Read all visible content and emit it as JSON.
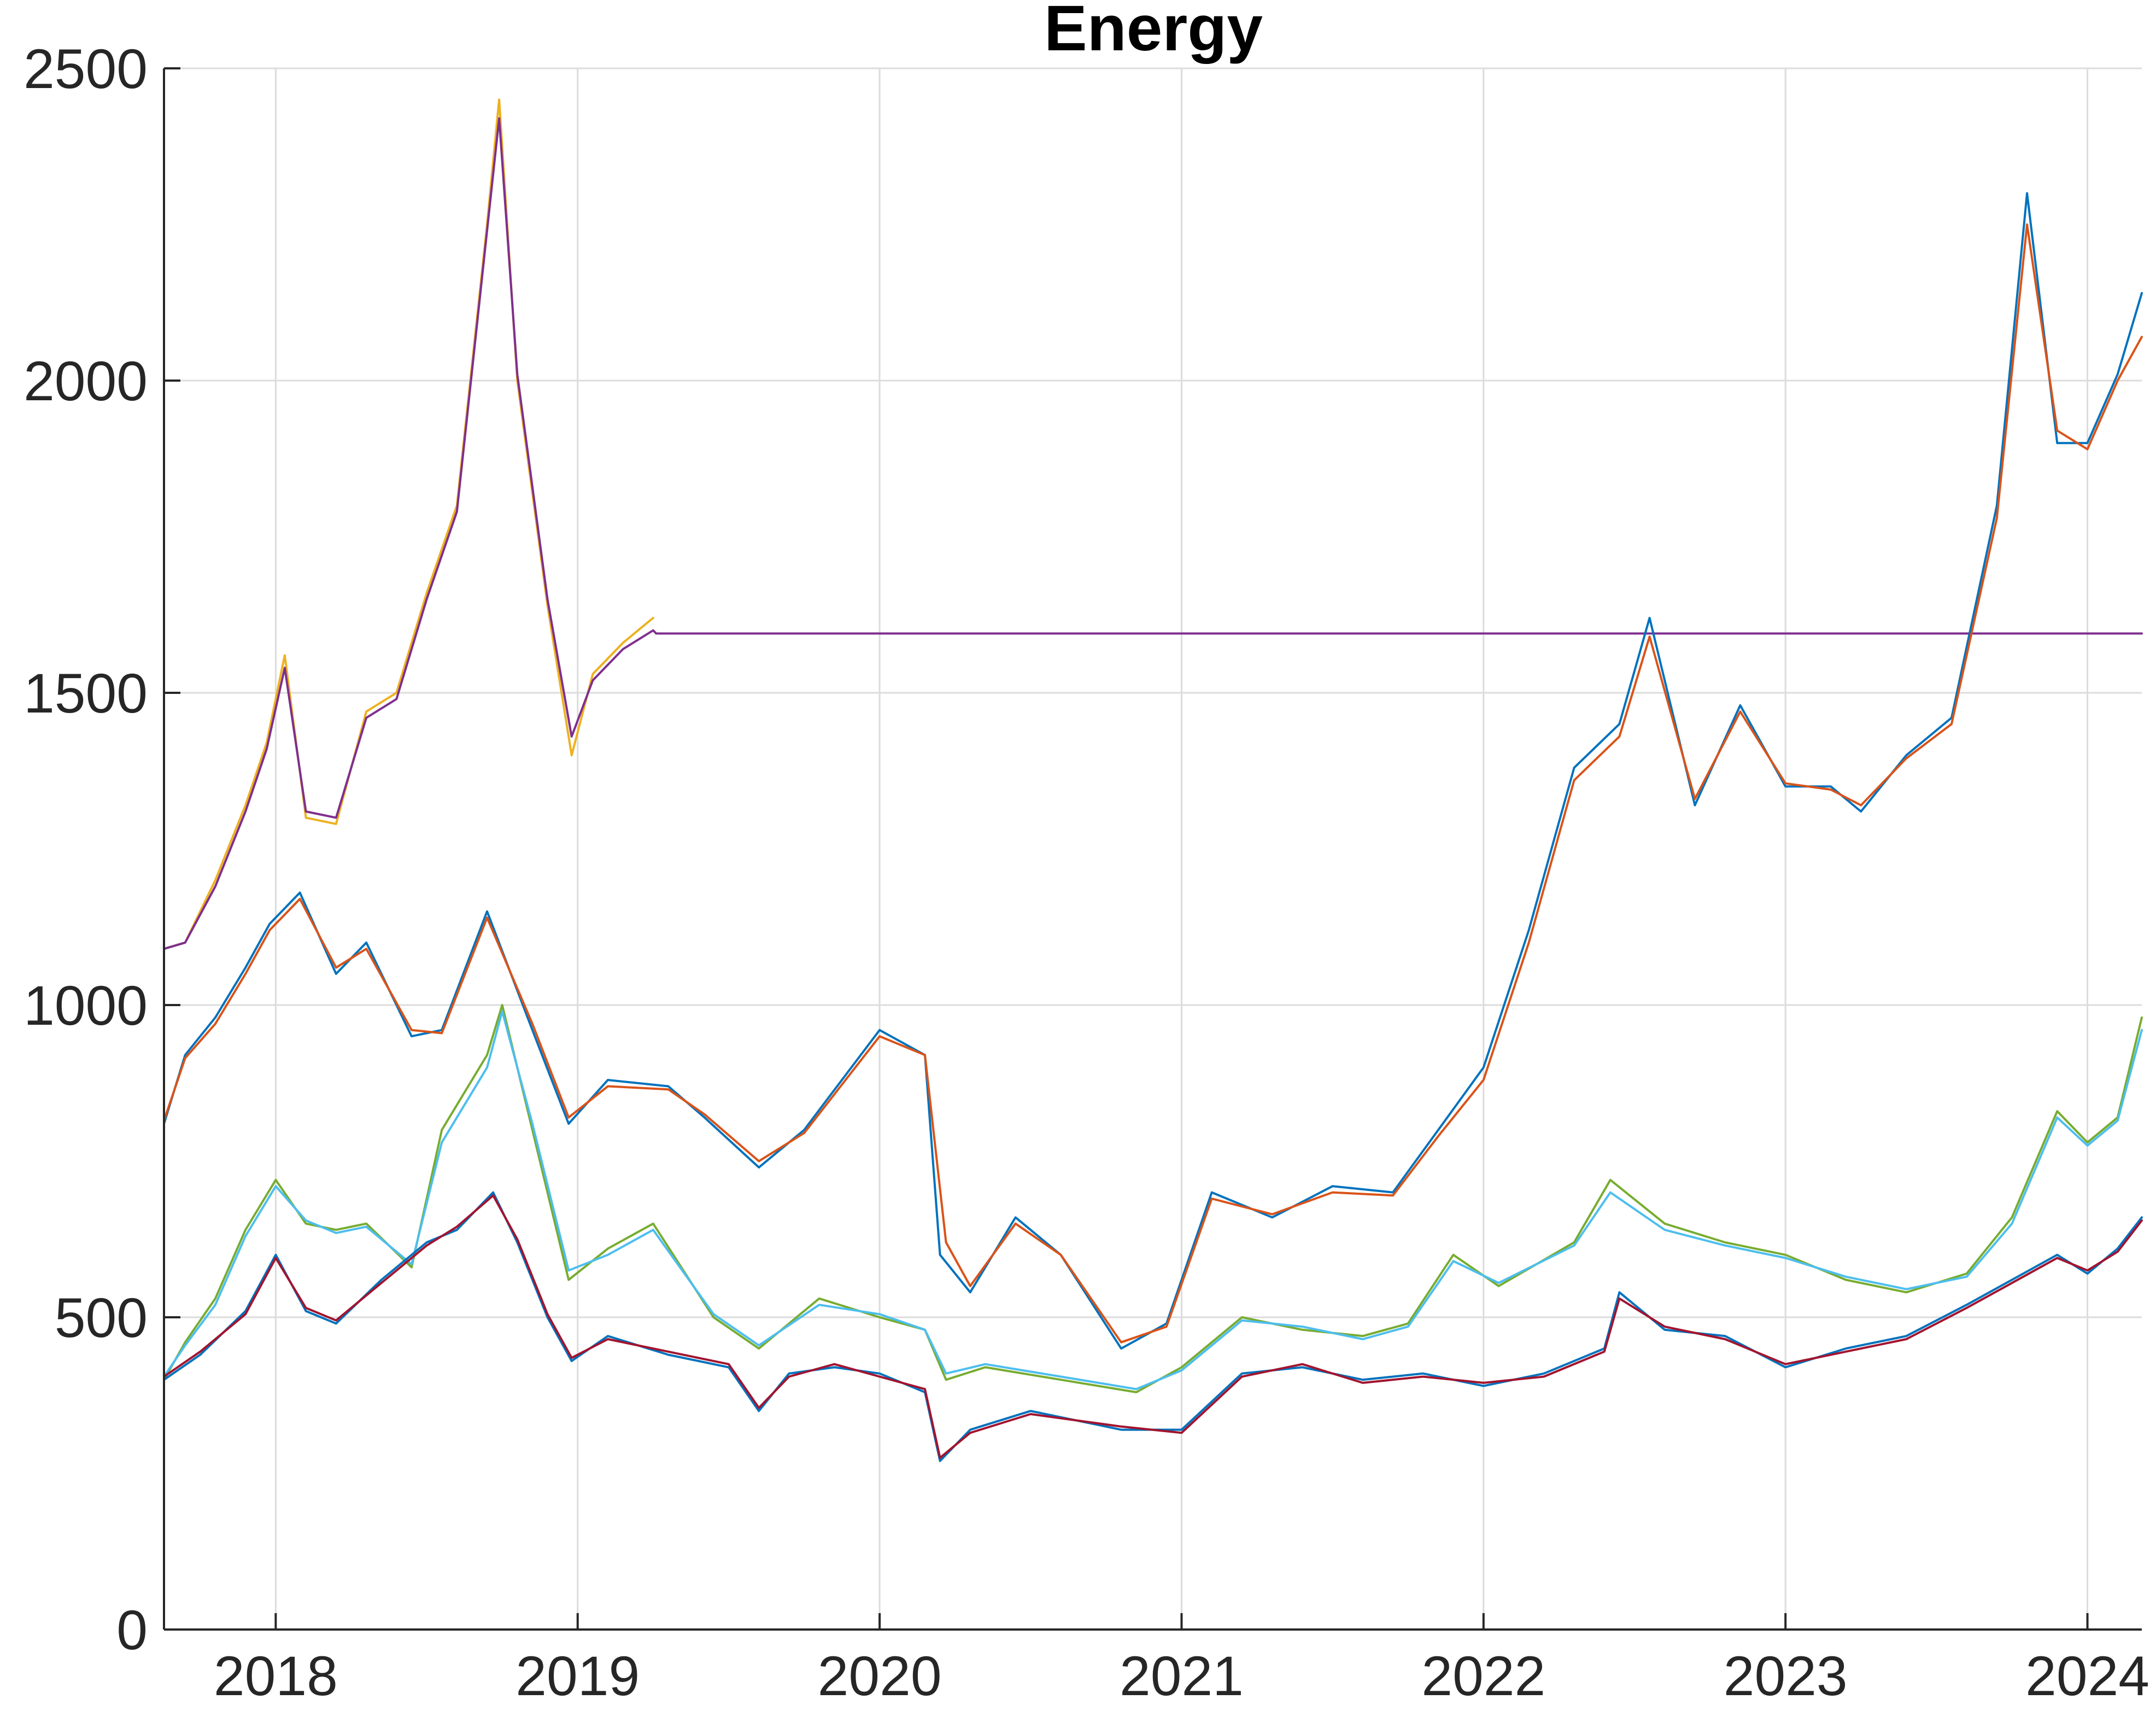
{
  "chart_data": {
    "type": "line",
    "title": "Energy",
    "xlabel": "",
    "ylabel": "",
    "grid": true,
    "xlim": [
      2017.63,
      2024.18
    ],
    "ylim": [
      0,
      2500
    ],
    "x_ticks": [
      "2018",
      "2019",
      "2020",
      "2021",
      "2022",
      "2023",
      "2024"
    ],
    "y_ticks": [
      "0",
      "500",
      "1000",
      "1500",
      "2000",
      "2500"
    ],
    "series": [
      {
        "color": "#EDB120",
        "x": [
          2017.63,
          2017.7,
          2017.8,
          2017.9,
          2017.97,
          2018.03,
          2018.1,
          2018.2,
          2018.3,
          2018.4,
          2018.5,
          2018.6,
          2018.7,
          2018.74,
          2018.8,
          2018.9,
          2018.98,
          2019.05,
          2019.15,
          2019.25
        ],
        "values": [
          1090,
          1100,
          1200,
          1320,
          1420,
          1560,
          1300,
          1290,
          1470,
          1500,
          1660,
          1800,
          2250,
          2450,
          2000,
          1640,
          1400,
          1530,
          1580,
          1620
        ]
      },
      {
        "color": "#7E2F8E",
        "x": [
          2017.63,
          2017.7,
          2017.8,
          2017.9,
          2017.97,
          2018.03,
          2018.1,
          2018.2,
          2018.3,
          2018.4,
          2018.5,
          2018.6,
          2018.7,
          2018.74,
          2018.8,
          2018.9,
          2018.98,
          2019.05,
          2019.15,
          2019.25,
          2019.26,
          2024.18
        ],
        "values": [
          1090,
          1100,
          1190,
          1310,
          1410,
          1540,
          1310,
          1300,
          1460,
          1490,
          1650,
          1790,
          2240,
          2420,
          2010,
          1650,
          1430,
          1520,
          1570,
          1600,
          1595,
          1595
        ]
      },
      {
        "color": "#0072BD",
        "x": [
          2017.63,
          2017.7,
          2017.8,
          2017.9,
          2017.98,
          2018.08,
          2018.2,
          2018.3,
          2018.45,
          2018.55,
          2018.7,
          2018.85,
          2018.97,
          2019.1,
          2019.3,
          2019.42,
          2019.6,
          2019.75,
          2020.0,
          2020.15,
          2020.2,
          2020.3,
          2020.45,
          2020.6,
          2020.8,
          2020.95,
          2021.1,
          2021.3,
          2021.5,
          2021.7,
          2021.85,
          2022.0,
          2022.15,
          2022.3,
          2022.45,
          2022.55,
          2022.7,
          2022.85,
          2023.0,
          2023.15,
          2023.25,
          2023.4,
          2023.55,
          2023.7,
          2023.8,
          2023.9,
          2024.0,
          2024.1,
          2024.18
        ],
        "values": [
          810,
          920,
          980,
          1060,
          1130,
          1180,
          1050,
          1100,
          950,
          960,
          1150,
          960,
          810,
          880,
          870,
          820,
          740,
          800,
          960,
          920,
          600,
          540,
          660,
          600,
          450,
          490,
          700,
          660,
          710,
          700,
          800,
          900,
          1120,
          1380,
          1450,
          1620,
          1320,
          1480,
          1350,
          1350,
          1310,
          1400,
          1460,
          1800,
          2300,
          1900,
          1900,
          2010,
          2140
        ]
      },
      {
        "color": "#D95319",
        "x": [
          2017.63,
          2017.7,
          2017.8,
          2017.9,
          2017.98,
          2018.08,
          2018.2,
          2018.3,
          2018.45,
          2018.55,
          2018.7,
          2018.85,
          2018.97,
          2019.1,
          2019.3,
          2019.42,
          2019.6,
          2019.75,
          2020.0,
          2020.15,
          2020.22,
          2020.3,
          2020.45,
          2020.6,
          2020.8,
          2020.95,
          2021.1,
          2021.3,
          2021.5,
          2021.7,
          2021.85,
          2022.0,
          2022.15,
          2022.3,
          2022.45,
          2022.55,
          2022.7,
          2022.85,
          2023.0,
          2023.15,
          2023.25,
          2023.4,
          2023.55,
          2023.7,
          2023.8,
          2023.9,
          2024.0,
          2024.1,
          2024.18
        ],
        "values": [
          815,
          915,
          970,
          1050,
          1120,
          1170,
          1060,
          1090,
          960,
          955,
          1140,
          970,
          820,
          870,
          865,
          825,
          750,
          795,
          950,
          920,
          620,
          550,
          650,
          600,
          460,
          485,
          690,
          665,
          700,
          695,
          790,
          880,
          1100,
          1360,
          1430,
          1590,
          1330,
          1470,
          1355,
          1345,
          1320,
          1395,
          1450,
          1780,
          2250,
          1920,
          1890,
          2000,
          2070
        ]
      },
      {
        "color": "#77AC30",
        "x": [
          2017.63,
          2017.7,
          2017.8,
          2017.9,
          2018.0,
          2018.1,
          2018.2,
          2018.3,
          2018.45,
          2018.55,
          2018.7,
          2018.75,
          2018.85,
          2018.97,
          2019.1,
          2019.25,
          2019.45,
          2019.6,
          2019.8,
          2020.0,
          2020.15,
          2020.22,
          2020.35,
          2020.6,
          2020.85,
          2021.0,
          2021.2,
          2021.4,
          2021.6,
          2021.75,
          2021.9,
          2022.05,
          2022.3,
          2022.42,
          2022.6,
          2022.8,
          2023.0,
          2023.2,
          2023.4,
          2023.6,
          2023.75,
          2023.9,
          2024.0,
          2024.1,
          2024.18
        ],
        "values": [
          400,
          460,
          530,
          640,
          720,
          650,
          640,
          650,
          580,
          800,
          920,
          1000,
          800,
          560,
          610,
          650,
          500,
          450,
          530,
          500,
          480,
          400,
          420,
          400,
          380,
          420,
          500,
          480,
          470,
          490,
          600,
          550,
          620,
          720,
          650,
          620,
          600,
          560,
          540,
          570,
          660,
          830,
          780,
          820,
          980
        ]
      },
      {
        "color": "#4DBEEE",
        "x": [
          2017.63,
          2017.7,
          2017.8,
          2017.9,
          2018.0,
          2018.1,
          2018.2,
          2018.3,
          2018.45,
          2018.55,
          2018.7,
          2018.75,
          2018.85,
          2018.97,
          2019.1,
          2019.25,
          2019.45,
          2019.6,
          2019.8,
          2020.0,
          2020.15,
          2020.22,
          2020.35,
          2020.6,
          2020.85,
          2021.0,
          2021.2,
          2021.4,
          2021.6,
          2021.75,
          2021.9,
          2022.05,
          2022.3,
          2022.42,
          2022.6,
          2022.8,
          2023.0,
          2023.2,
          2023.4,
          2023.6,
          2023.75,
          2023.9,
          2024.0,
          2024.1,
          2024.18
        ],
        "values": [
          405,
          455,
          520,
          630,
          710,
          655,
          635,
          645,
          585,
          780,
          900,
          990,
          810,
          575,
          600,
          640,
          505,
          455,
          520,
          505,
          480,
          410,
          425,
          405,
          385,
          415,
          495,
          485,
          465,
          485,
          590,
          555,
          615,
          700,
          640,
          615,
          595,
          565,
          545,
          565,
          650,
          820,
          775,
          815,
          960
        ]
      },
      {
        "color": "#0072BD",
        "x": [
          2017.63,
          2017.75,
          2017.9,
          2018.0,
          2018.1,
          2018.2,
          2018.35,
          2018.5,
          2018.6,
          2018.72,
          2018.8,
          2018.9,
          2018.98,
          2019.1,
          2019.3,
          2019.5,
          2019.6,
          2019.7,
          2019.85,
          2020.0,
          2020.15,
          2020.2,
          2020.3,
          2020.5,
          2020.8,
          2021.0,
          2021.2,
          2021.4,
          2021.6,
          2021.8,
          2022.0,
          2022.2,
          2022.4,
          2022.45,
          2022.6,
          2022.8,
          2023.0,
          2023.2,
          2023.4,
          2023.6,
          2023.75,
          2023.9,
          2024.0,
          2024.1,
          2024.18
        ],
        "values": [
          400,
          440,
          510,
          600,
          510,
          490,
          560,
          620,
          640,
          700,
          620,
          500,
          430,
          470,
          440,
          420,
          350,
          410,
          420,
          410,
          380,
          270,
          320,
          350,
          320,
          320,
          410,
          420,
          400,
          410,
          390,
          410,
          450,
          540,
          480,
          470,
          420,
          450,
          470,
          520,
          560,
          600,
          570,
          610,
          660
        ]
      },
      {
        "color": "#A2142F",
        "x": [
          2017.63,
          2017.75,
          2017.9,
          2018.0,
          2018.1,
          2018.2,
          2018.35,
          2018.5,
          2018.6,
          2018.72,
          2018.8,
          2018.9,
          2018.98,
          2019.1,
          2019.3,
          2019.5,
          2019.6,
          2019.7,
          2019.85,
          2020.0,
          2020.15,
          2020.2,
          2020.3,
          2020.5,
          2020.8,
          2021.0,
          2021.2,
          2021.4,
          2021.6,
          2021.8,
          2022.0,
          2022.2,
          2022.4,
          2022.45,
          2022.6,
          2022.8,
          2023.0,
          2023.2,
          2023.4,
          2023.6,
          2023.75,
          2023.9,
          2024.0,
          2024.1,
          2024.18
        ],
        "values": [
          405,
          445,
          505,
          595,
          515,
          495,
          555,
          615,
          645,
          695,
          625,
          505,
          435,
          465,
          445,
          425,
          355,
          405,
          425,
          405,
          385,
          275,
          315,
          345,
          325,
          315,
          405,
          425,
          395,
          405,
          395,
          405,
          445,
          530,
          485,
          465,
          425,
          445,
          465,
          515,
          555,
          595,
          575,
          605,
          655
        ]
      }
    ]
  }
}
